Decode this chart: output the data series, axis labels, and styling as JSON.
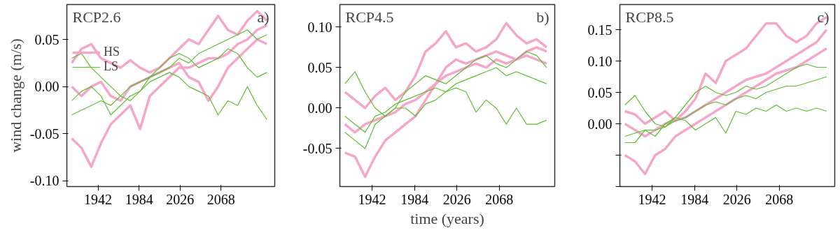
{
  "chart_data": [
    {
      "type": "line",
      "title": "RCP2.6",
      "annotations": [
        "a)"
      ],
      "ylabel": "wind change (m/s)",
      "legend": "top left",
      "grid": false,
      "x": [
        1915,
        1925,
        1935,
        1945,
        1955,
        1965,
        1975,
        1985,
        1995,
        2005,
        2015,
        2025,
        2035,
        2045,
        2055,
        2065,
        2075,
        2085,
        2095,
        2105,
        2115
      ],
      "xlim": [
        1910,
        2123
      ],
      "xticks": [
        1942,
        1984,
        2026,
        2068
      ],
      "ylim": [
        -0.106,
        0.087
      ],
      "yticks": [
        {
          "value": -0.1,
          "label": "-0.10"
        },
        {
          "value": -0.05,
          "label": "-0.05"
        },
        {
          "value": 0,
          "label": "0.00"
        },
        {
          "value": 0.05,
          "label": "0.05"
        }
      ],
      "series": [
        {
          "name": "HS",
          "color": "#f4a7c8",
          "values": [
            -0.055,
            -0.065,
            -0.085,
            -0.06,
            -0.04,
            -0.03,
            -0.02,
            -0.045,
            -0.01,
            0.0,
            0.01,
            0.02,
            0.02,
            0.025,
            0.03,
            0.03,
            0.035,
            0.045,
            0.05,
            0.06,
            0.065
          ]
        },
        {
          "color": "#f4a7c8",
          "values": [
            0.025,
            0.04,
            0.045,
            0.03,
            0.025,
            0.02,
            0.028,
            0.02,
            0.015,
            0.02,
            0.03,
            0.04,
            0.05,
            0.045,
            0.06,
            0.075,
            0.06,
            0.055,
            0.07,
            0.08,
            0.07
          ]
        },
        {
          "color": "#f4a7c8",
          "values": [
            0.0,
            -0.01,
            0.0,
            0.005,
            -0.01,
            -0.015,
            0.0,
            0.005,
            0.01,
            0.015,
            0.02,
            0.025,
            0.01,
            0.005,
            -0.015,
            0.0,
            0.02,
            0.03,
            0.04,
            0.05,
            0.045
          ]
        },
        {
          "name": "LS",
          "color": "#5dbf2e",
          "values": [
            0.03,
            0.035,
            0.02,
            0.01,
            0.0,
            -0.01,
            -0.015,
            -0.005,
            0.01,
            0.015,
            0.02,
            0.03,
            0.025,
            0.035,
            0.04,
            0.045,
            0.05,
            0.055,
            0.06,
            0.05,
            0.055
          ]
        },
        {
          "color": "#5dbf2e",
          "values": [
            -0.03,
            -0.025,
            -0.02,
            -0.015,
            -0.02,
            -0.01,
            0.0,
            0.005,
            0.01,
            0.02,
            0.03,
            0.035,
            0.03,
            0.02,
            0.025,
            0.03,
            0.04,
            0.035,
            0.02,
            0.01,
            0.015
          ]
        },
        {
          "color": "#5dbf2e",
          "values": [
            -0.015,
            -0.005,
            0.0,
            -0.01,
            -0.03,
            -0.02,
            -0.01,
            -0.005,
            0.005,
            0.01,
            0.015,
            0.01,
            0.0,
            -0.005,
            -0.01,
            -0.03,
            -0.015,
            -0.02,
            0.0,
            -0.02,
            -0.035
          ]
        }
      ]
    },
    {
      "type": "line",
      "title": "RCP4.5",
      "annotations": [
        "b)"
      ],
      "xlabel": "time (years)",
      "grid": false,
      "x": [
        1915,
        1925,
        1935,
        1945,
        1955,
        1965,
        1975,
        1985,
        1995,
        2005,
        2015,
        2025,
        2035,
        2045,
        2055,
        2065,
        2075,
        2085,
        2095,
        2105,
        2115
      ],
      "xlim": [
        1910,
        2123
      ],
      "xticks": [
        1942,
        1984,
        2026,
        2068
      ],
      "ylim": [
        -0.097,
        0.128
      ],
      "yticks": [
        {
          "value": -0.05,
          "label": "-0.05"
        },
        {
          "value": 0,
          "label": "0.00"
        },
        {
          "value": 0.05,
          "label": "0.05"
        },
        {
          "value": 0.1,
          "label": "0.10"
        }
      ],
      "series": [
        {
          "color": "#f4a7c8",
          "values": [
            -0.055,
            -0.06,
            -0.085,
            -0.06,
            -0.04,
            -0.03,
            -0.02,
            -0.01,
            0.01,
            0.03,
            0.05,
            0.06,
            0.055,
            0.06,
            0.065,
            0.07,
            0.065,
            0.06,
            0.07,
            0.075,
            0.07
          ]
        },
        {
          "color": "#f4a7c8",
          "values": [
            0.02,
            0.01,
            0.0,
            0.015,
            0.025,
            0.01,
            0.02,
            0.04,
            0.07,
            0.08,
            0.095,
            0.075,
            0.08,
            0.07,
            0.075,
            0.085,
            0.105,
            0.09,
            0.08,
            0.085,
            0.075
          ]
        },
        {
          "color": "#f4a7c8",
          "values": [
            -0.02,
            -0.03,
            -0.02,
            -0.015,
            -0.01,
            -0.005,
            0.005,
            0.01,
            0.02,
            0.03,
            0.04,
            0.045,
            0.05,
            0.055,
            0.05,
            0.06,
            0.055,
            0.06,
            0.065,
            0.06,
            0.055
          ]
        },
        {
          "color": "#5dbf2e",
          "values": [
            0.03,
            0.045,
            0.02,
            0.0,
            -0.01,
            0.0,
            0.02,
            0.03,
            0.04,
            0.035,
            0.03,
            0.04,
            0.05,
            0.06,
            0.065,
            0.055,
            0.05,
            0.06,
            0.07,
            0.065,
            0.05
          ]
        },
        {
          "color": "#5dbf2e",
          "values": [
            -0.01,
            -0.02,
            -0.03,
            -0.01,
            -0.005,
            0.005,
            0.01,
            0.015,
            0.02,
            0.025,
            0.02,
            0.03,
            0.035,
            0.04,
            0.045,
            0.05,
            0.04,
            0.045,
            0.04,
            0.035,
            0.03
          ]
        },
        {
          "color": "#5dbf2e",
          "values": [
            -0.03,
            -0.04,
            -0.05,
            -0.02,
            -0.01,
            0.0,
            0.0,
            -0.01,
            0.005,
            0.01,
            0.02,
            0.025,
            0.02,
            -0.005,
            0.01,
            0.0,
            -0.02,
            0.0,
            -0.02,
            -0.02,
            -0.015
          ]
        }
      ]
    },
    {
      "type": "line",
      "title": "RCP8.5",
      "annotations": [
        "c)"
      ],
      "grid": false,
      "x": [
        1915,
        1925,
        1935,
        1945,
        1955,
        1965,
        1975,
        1985,
        1995,
        2005,
        2015,
        2025,
        2035,
        2045,
        2055,
        2065,
        2075,
        2085,
        2095,
        2105,
        2115
      ],
      "xlim": [
        1910,
        2123
      ],
      "xticks": [
        1942,
        1984,
        2026,
        2068
      ],
      "ylim": [
        -0.1,
        0.19
      ],
      "yticks": [
        {
          "value": -0.1,
          "label": null
        },
        {
          "value": -0.05,
          "label": null
        },
        {
          "value": 0,
          "label": "0.00"
        },
        {
          "value": 0.05,
          "label": "0.05"
        },
        {
          "value": 0.1,
          "label": "0.10"
        },
        {
          "value": 0.15,
          "label": "0.15"
        }
      ],
      "series": [
        {
          "color": "#f4a7c8",
          "values": [
            -0.05,
            -0.06,
            -0.08,
            -0.05,
            -0.04,
            -0.02,
            -0.01,
            0.0,
            0.01,
            0.02,
            0.03,
            0.04,
            0.05,
            0.06,
            0.07,
            0.08,
            0.085,
            0.09,
            0.1,
            0.11,
            0.12
          ]
        },
        {
          "color": "#f4a7c8",
          "values": [
            0.02,
            0.015,
            0.0,
            0.01,
            0.02,
            0.005,
            0.02,
            0.04,
            0.08,
            0.065,
            0.1,
            0.11,
            0.12,
            0.14,
            0.16,
            0.16,
            0.14,
            0.13,
            0.14,
            0.16,
            0.17
          ]
        },
        {
          "color": "#f4a7c8",
          "values": [
            0.0,
            -0.01,
            -0.02,
            -0.01,
            0.0,
            0.005,
            0.01,
            0.02,
            0.03,
            0.04,
            0.05,
            0.06,
            0.07,
            0.075,
            0.08,
            0.09,
            0.1,
            0.11,
            0.12,
            0.13,
            0.15
          ]
        },
        {
          "color": "#5dbf2e",
          "values": [
            0.03,
            0.045,
            0.02,
            0.0,
            -0.005,
            0.01,
            0.03,
            0.05,
            0.06,
            0.05,
            0.045,
            0.05,
            0.06,
            0.055,
            0.06,
            0.07,
            0.08,
            0.09,
            0.095,
            0.09,
            0.09
          ]
        },
        {
          "color": "#5dbf2e",
          "values": [
            -0.02,
            -0.015,
            -0.01,
            -0.01,
            -0.005,
            0.005,
            0.01,
            0.02,
            0.03,
            0.035,
            0.03,
            0.04,
            0.045,
            0.04,
            0.05,
            0.055,
            0.06,
            0.06,
            0.065,
            0.07,
            0.075
          ]
        },
        {
          "color": "#5dbf2e",
          "values": [
            -0.03,
            -0.03,
            -0.01,
            -0.02,
            0.0,
            0.01,
            0.005,
            -0.01,
            0.0,
            0.01,
            -0.015,
            0.02,
            0.015,
            0.025,
            0.02,
            0.03,
            0.02,
            0.025,
            0.02,
            0.025,
            0.02
          ]
        }
      ]
    }
  ]
}
